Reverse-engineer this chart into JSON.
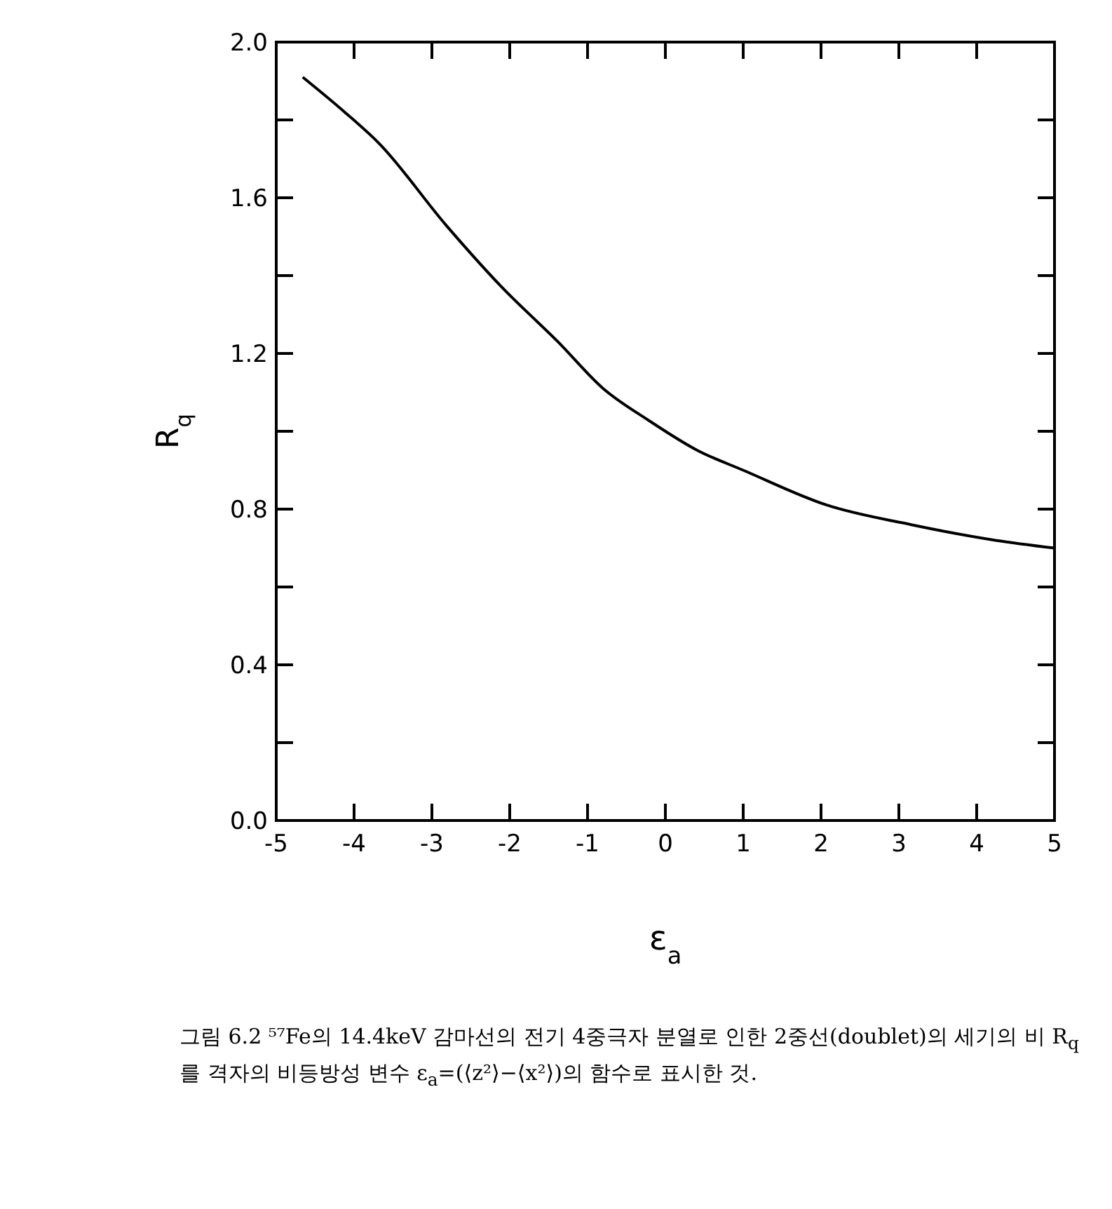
{
  "chart_data": {
    "type": "line",
    "xlabel": "ε$_{a}$",
    "ylabel": "R$_{q}$",
    "xlim": [
      -5,
      5
    ],
    "ylim": [
      0,
      2
    ],
    "xticks": [
      -5,
      -4,
      -3,
      -2,
      -1,
      0,
      1,
      2,
      3,
      4,
      5
    ],
    "yticks": [
      {
        "value": 0,
        "label": "0.0"
      },
      {
        "value": 0.2,
        "label": null
      },
      0.4,
      {
        "value": 0.6,
        "label": null
      },
      0.8,
      {
        "value": 1.0,
        "label": null
      },
      1.2,
      {
        "value": 1.4,
        "label": null
      },
      1.6,
      {
        "value": 1.8,
        "label": null
      },
      {
        "value": 2.0,
        "label": "2.0"
      }
    ],
    "series": [
      {
        "color": "#000000",
        "x": [
          -4.66,
          -4.12,
          -3.68,
          -2.82,
          -2.1,
          -1.38,
          -0.8,
          -0.23,
          0.42,
          1.0,
          2.08,
          3.16,
          4.24,
          5.0
        ],
        "values": [
          1.91,
          1.82,
          1.74,
          1.53,
          1.37,
          1.23,
          1.11,
          1.03,
          0.95,
          0.9,
          0.81,
          0.76,
          0.72,
          0.7
        ]
      }
    ],
    "marker": "none",
    "line_style": "solid",
    "grid": false,
    "annotations": [
      "그림 6.2  ⁵⁷Fe의 14.4keV 감마선의 전기 4중극자 분열로 인한 2중선(doublet)의 세기의 비 R$_{q}$를 격자의 비등방성 변수 ε$_{a}$=(⟨z²⟩−⟨x²⟩)의 함수로 표시한 것."
    ]
  }
}
